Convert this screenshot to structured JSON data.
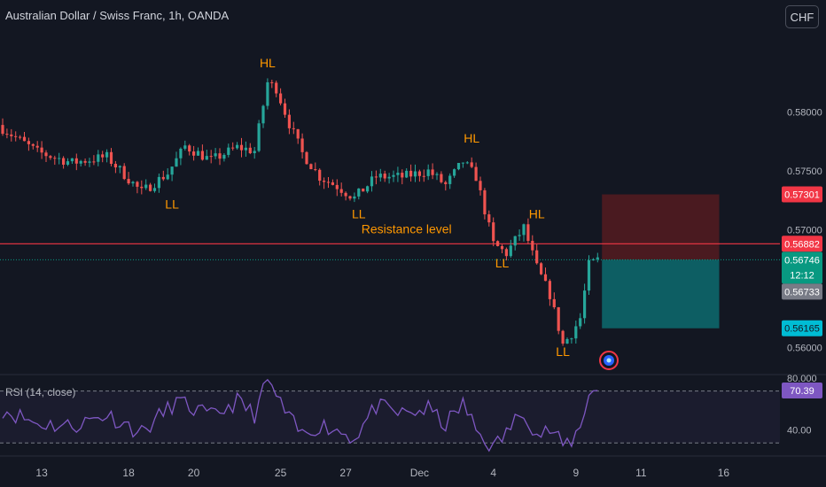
{
  "header": {
    "title": "Australian Dollar / Swiss Franc, 1h, OANDA",
    "currency_button": "CHF"
  },
  "colors": {
    "background": "#131722",
    "up": "#26a69a",
    "down": "#ef5350",
    "annotation": "#ff9800",
    "rsi": "#7e57c2",
    "resistance_line": "#f23645",
    "stop_zone": "#4a1a20",
    "target_zone": "#0d5e63"
  },
  "chart_data": [
    {
      "type": "candlestick",
      "price_axis": {
        "ticks": [
          {
            "value": 0.58,
            "label": "0.58000"
          },
          {
            "value": 0.575,
            "label": "0.57500"
          },
          {
            "value": 0.57,
            "label": "0.57000"
          },
          {
            "value": 0.56,
            "label": "0.56000"
          }
        ],
        "range": [
          0.5578,
          0.5895
        ]
      },
      "time_axis": {
        "ticks": [
          {
            "label": "13",
            "index": 9
          },
          {
            "label": "18",
            "index": 29
          },
          {
            "label": "20",
            "index": 44
          },
          {
            "label": "25",
            "index": 64
          },
          {
            "label": "27",
            "index": 79
          },
          {
            "label": "Dec",
            "index": 96
          },
          {
            "label": "4",
            "index": 113
          },
          {
            "label": "9",
            "index": 132
          },
          {
            "label": "11",
            "index": 147
          },
          {
            "label": "16",
            "index": 166
          }
        ]
      },
      "key_points": [
        {
          "index": 0,
          "price": 0.5786
        },
        {
          "index": 8,
          "price": 0.5766
        },
        {
          "index": 16,
          "price": 0.5757
        },
        {
          "index": 24,
          "price": 0.5762
        },
        {
          "index": 32,
          "price": 0.5732
        },
        {
          "index": 38,
          "price": 0.5748
        },
        {
          "index": 42,
          "price": 0.5771
        },
        {
          "index": 48,
          "price": 0.5759
        },
        {
          "index": 54,
          "price": 0.577
        },
        {
          "index": 58,
          "price": 0.5767
        },
        {
          "index": 61,
          "price": 0.5825
        },
        {
          "index": 63,
          "price": 0.582
        },
        {
          "index": 66,
          "price": 0.579
        },
        {
          "index": 69,
          "price": 0.5765
        },
        {
          "index": 73,
          "price": 0.5745
        },
        {
          "index": 77,
          "price": 0.5737
        },
        {
          "index": 81,
          "price": 0.5727
        },
        {
          "index": 86,
          "price": 0.5745
        },
        {
          "index": 92,
          "price": 0.5745
        },
        {
          "index": 98,
          "price": 0.575
        },
        {
          "index": 102,
          "price": 0.5738
        },
        {
          "index": 106,
          "price": 0.5758
        },
        {
          "index": 109,
          "price": 0.5745
        },
        {
          "index": 113,
          "price": 0.5688
        },
        {
          "index": 116,
          "price": 0.568
        },
        {
          "index": 120,
          "price": 0.5702
        },
        {
          "index": 123,
          "price": 0.5668
        },
        {
          "index": 126,
          "price": 0.5645
        },
        {
          "index": 129,
          "price": 0.5603
        },
        {
          "index": 131,
          "price": 0.5612
        },
        {
          "index": 133,
          "price": 0.5625
        },
        {
          "index": 135,
          "price": 0.567
        },
        {
          "index": 137,
          "price": 0.56746
        }
      ],
      "current_price": 0.56746,
      "resistance_level": 0.56882,
      "position": {
        "stop": 0.57301,
        "entry": 0.56746,
        "target": 0.56165,
        "start_index": 138,
        "end_index": 165
      },
      "price_labels": [
        {
          "value": 0.57301,
          "label": "0.57301",
          "color": "#f23645"
        },
        {
          "value": 0.56882,
          "label": "0.56882",
          "color": "#f23645"
        },
        {
          "value": 0.56746,
          "label": "0.56746",
          "color": "#089981"
        },
        {
          "value": 0.56733,
          "label": "0.56733",
          "color": "#787b86"
        },
        {
          "value": 0.56165,
          "label": "0.56165",
          "color": "#00bcd4"
        }
      ],
      "countdown": "12:12",
      "annotations": [
        {
          "text": "HL",
          "index": 61,
          "price": 0.5838
        },
        {
          "text": "LL",
          "index": 39,
          "price": 0.5718
        },
        {
          "text": "LL",
          "index": 82,
          "price": 0.571
        },
        {
          "text": "HL",
          "index": 108,
          "price": 0.5774
        },
        {
          "text": "HL",
          "index": 123,
          "price": 0.571
        },
        {
          "text": "LL",
          "index": 115,
          "price": 0.5668
        },
        {
          "text": "LL",
          "index": 129,
          "price": 0.5593
        },
        {
          "text": "Resistance level",
          "index": 93,
          "price": 0.5697
        }
      ]
    },
    {
      "type": "line",
      "title": "RSI (14, close)",
      "current_value": "70.39",
      "y_ticks": [
        {
          "value": 80,
          "label": "80.000"
        },
        {
          "value": 40,
          "label": "40.00"
        }
      ],
      "levels": [
        70,
        30
      ],
      "range": [
        22,
        82
      ],
      "key_points": [
        {
          "index": 0,
          "value": 56
        },
        {
          "index": 8,
          "value": 45
        },
        {
          "index": 16,
          "value": 43
        },
        {
          "index": 24,
          "value": 52
        },
        {
          "index": 32,
          "value": 38
        },
        {
          "index": 40,
          "value": 62
        },
        {
          "index": 48,
          "value": 50
        },
        {
          "index": 54,
          "value": 62
        },
        {
          "index": 58,
          "value": 52
        },
        {
          "index": 61,
          "value": 78
        },
        {
          "index": 63,
          "value": 66
        },
        {
          "index": 66,
          "value": 48
        },
        {
          "index": 69,
          "value": 36
        },
        {
          "index": 73,
          "value": 44
        },
        {
          "index": 77,
          "value": 40
        },
        {
          "index": 81,
          "value": 34
        },
        {
          "index": 86,
          "value": 58
        },
        {
          "index": 92,
          "value": 52
        },
        {
          "index": 98,
          "value": 56
        },
        {
          "index": 102,
          "value": 44
        },
        {
          "index": 106,
          "value": 60
        },
        {
          "index": 109,
          "value": 40
        },
        {
          "index": 113,
          "value": 26
        },
        {
          "index": 116,
          "value": 38
        },
        {
          "index": 120,
          "value": 56
        },
        {
          "index": 123,
          "value": 36
        },
        {
          "index": 126,
          "value": 40
        },
        {
          "index": 129,
          "value": 28
        },
        {
          "index": 131,
          "value": 32
        },
        {
          "index": 133,
          "value": 42
        },
        {
          "index": 135,
          "value": 70
        },
        {
          "index": 137,
          "value": 70.39
        }
      ]
    }
  ]
}
